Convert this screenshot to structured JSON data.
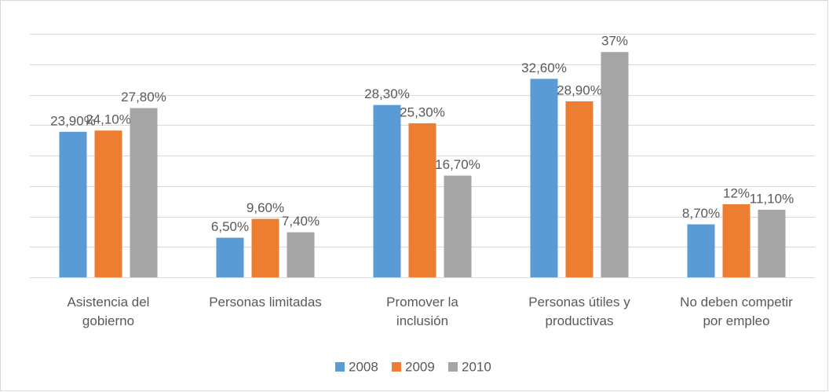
{
  "chart_data": {
    "type": "bar",
    "categories": [
      "Asistencia del gobierno",
      "Personas limitadas",
      "Promover la inclusión",
      "Personas útiles y productivas",
      "No deben competir por empleo"
    ],
    "series": [
      {
        "name": "2008",
        "color": "#5b9bd5",
        "values": [
          23.9,
          6.5,
          28.3,
          32.6,
          8.7
        ],
        "value_labels": [
          "23,90%",
          "6,50%",
          "28,30%",
          "32,60%",
          "8,70%"
        ]
      },
      {
        "name": "2009",
        "color": "#ed7d31",
        "values": [
          24.1,
          9.6,
          25.3,
          28.9,
          12
        ],
        "value_labels": [
          "24,10%",
          "9,60%",
          "25,30%",
          "28,90%",
          "12%"
        ]
      },
      {
        "name": "2010",
        "color": "#a5a5a5",
        "values": [
          27.8,
          7.4,
          16.7,
          37,
          11.1
        ],
        "value_labels": [
          "27,80%",
          "7,40%",
          "16,70%",
          "37%",
          "11,10%"
        ]
      }
    ],
    "ylim": [
      0,
      40
    ],
    "yticks": [
      0,
      5,
      10,
      15,
      20,
      25,
      30,
      35,
      40
    ],
    "grid": true,
    "legend": "bottom"
  }
}
